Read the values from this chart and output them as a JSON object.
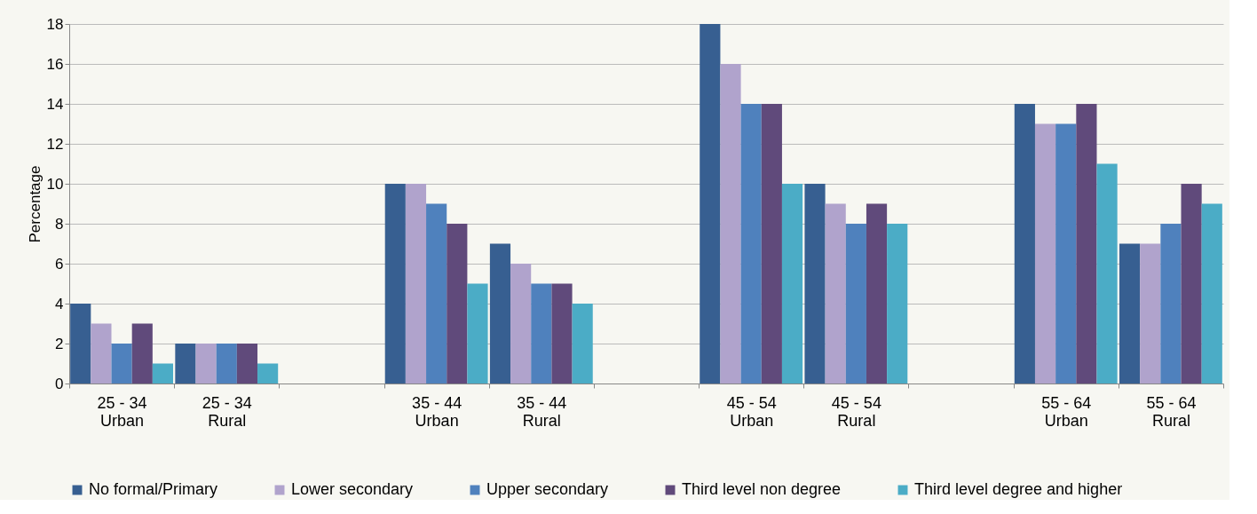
{
  "chart_data": {
    "type": "bar",
    "ylabel": "Percentage",
    "categories": [
      "25 - 34\nUrban",
      "25 - 34\nRural",
      null,
      "35 - 44\nUrban",
      "35 - 44\nRural",
      null,
      "45 - 54\nUrban",
      "45 - 54\nRural",
      null,
      "55 - 64\nUrban",
      "55 - 64\nRural"
    ],
    "series": [
      {
        "name": "No formal/Primary",
        "color": "#375f91",
        "values": [
          4,
          2,
          null,
          10,
          7,
          null,
          18,
          10,
          null,
          14,
          7
        ]
      },
      {
        "name": "Lower secondary",
        "color": "#b0a3cc",
        "values": [
          3,
          2,
          null,
          10,
          6,
          null,
          16,
          9,
          null,
          13,
          7
        ]
      },
      {
        "name": "Upper secondary",
        "color": "#4f81bd",
        "values": [
          2,
          2,
          null,
          9,
          5,
          null,
          14,
          8,
          null,
          13,
          8
        ]
      },
      {
        "name": "Third level non degree",
        "color": "#604a7b",
        "values": [
          3,
          2,
          null,
          8,
          5,
          null,
          14,
          9,
          null,
          14,
          10
        ]
      },
      {
        "name": "Third level degree and higher",
        "color": "#4bacc6",
        "values": [
          1,
          1,
          null,
          5,
          4,
          null,
          10,
          8,
          null,
          11,
          9
        ]
      }
    ],
    "ylim": [
      0,
      18
    ],
    "yticks": [
      0,
      2,
      4,
      6,
      8,
      10,
      12,
      14,
      16,
      18
    ],
    "grid": "y",
    "legend": "bottom"
  }
}
